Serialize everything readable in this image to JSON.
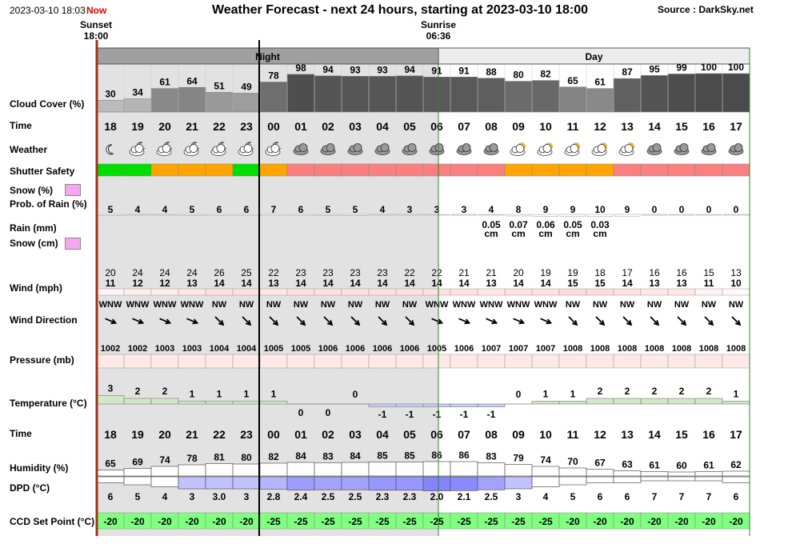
{
  "header": {
    "date": "2023-03-10 18:03",
    "now_label": "Now",
    "title": "Weather Forecast - next 24 hours, starting at 2023-03-10 18:00",
    "source": "Source : DarkSky.net"
  },
  "sun": {
    "sunset_label": "Sunset",
    "sunset_time": "18:00",
    "sunrise_label": "Sunrise",
    "sunrise_time": "06:36"
  },
  "period": {
    "night": "Night",
    "day": "Day"
  },
  "labels": {
    "cloud": "Cloud Cover (%)",
    "time": "Time",
    "weather": "Weather",
    "shutter": "Shutter Safety",
    "snow_pct": "Snow (%)",
    "prob_rain": "Prob. of Rain (%)",
    "rain_mm": "Rain (mm)",
    "snow_cm": "Snow (cm)",
    "wind": "Wind (mph)",
    "wind_dir": "Wind Direction",
    "pressure": "Pressure (mb)",
    "temperature": "Temperature (°C)",
    "humidity": "Humidity (%)",
    "dpd": "DPD (°C)",
    "ccd": "CCD Set Point (°C)"
  },
  "colors": {
    "night_bg": "#e2e2e2",
    "period_bar_night": "#a0a0a0",
    "period_bar_day": "#ececec",
    "shutter_green": "#00dd00",
    "shutter_orange": "#ffa500",
    "shutter_red": "#f88080",
    "snow_swatch": "#f4a6f0",
    "ccd_green": "#80ff80",
    "now_line": "#000000",
    "sunset_line": "#a03018"
  },
  "chart_data": {
    "type": "table",
    "hours": [
      "18",
      "19",
      "20",
      "21",
      "22",
      "23",
      "00",
      "01",
      "02",
      "03",
      "04",
      "05",
      "06",
      "07",
      "08",
      "09",
      "10",
      "11",
      "12",
      "13",
      "14",
      "15",
      "16",
      "17"
    ],
    "cloud_cover": [
      30,
      34,
      61,
      64,
      51,
      49,
      78,
      98,
      94,
      93,
      93,
      94,
      91,
      91,
      88,
      80,
      82,
      65,
      61,
      87,
      95,
      99,
      100,
      100
    ],
    "weather_icons": [
      "clear-night-icon",
      "partly-cloudy-night-icon",
      "partly-cloudy-night-icon",
      "partly-cloudy-night-icon",
      "partly-cloudy-night-icon",
      "partly-cloudy-night-icon",
      "partly-cloudy-night-icon",
      "cloudy-icon",
      "cloudy-icon",
      "cloudy-icon",
      "cloudy-icon",
      "cloudy-icon",
      "cloudy-icon",
      "cloudy-icon",
      "cloudy-icon",
      "partly-cloudy-day-icon",
      "partly-cloudy-day-icon",
      "partly-cloudy-day-icon",
      "partly-cloudy-day-icon",
      "partly-cloudy-day-icon",
      "cloudy-icon",
      "cloudy-icon",
      "cloudy-icon",
      "cloudy-icon"
    ],
    "shutter_safety": [
      "green",
      "green",
      "orange",
      "orange",
      "orange",
      "green",
      "orange",
      "red",
      "red",
      "red",
      "red",
      "red",
      "red",
      "red",
      "red",
      "orange",
      "orange",
      "orange",
      "orange",
      "red",
      "red",
      "red",
      "red",
      "red"
    ],
    "prob_rain": [
      5,
      4,
      4,
      5,
      6,
      6,
      7,
      6,
      5,
      5,
      4,
      3,
      3,
      3,
      4,
      8,
      9,
      9,
      10,
      9,
      0,
      0,
      0,
      0
    ],
    "snow_amount": [
      null,
      null,
      null,
      null,
      null,
      null,
      null,
      null,
      null,
      null,
      null,
      null,
      null,
      null,
      "0.05",
      "0.07",
      "0.06",
      "0.05",
      "0.03",
      null,
      null,
      null,
      null,
      null
    ],
    "snow_unit": "cm",
    "wind_gust": [
      20,
      24,
      24,
      24,
      26,
      25,
      22,
      23,
      23,
      23,
      23,
      22,
      22,
      21,
      21,
      20,
      19,
      19,
      18,
      17,
      16,
      16,
      15,
      13
    ],
    "wind_speed": [
      11,
      12,
      12,
      13,
      14,
      14,
      13,
      14,
      14,
      14,
      14,
      14,
      14,
      14,
      13,
      14,
      14,
      15,
      15,
      14,
      13,
      13,
      11,
      10
    ],
    "wind_direction": [
      "WNW",
      "WNW",
      "WNW",
      "WNW",
      "NW",
      "NW",
      "NW",
      "NW",
      "NW",
      "NW",
      "NW",
      "NW",
      "WNW",
      "WNW",
      "WNW",
      "WNW",
      "WNW",
      "NW",
      "NW",
      "NW",
      "NW",
      "NW",
      "NW",
      "NW"
    ],
    "pressure": [
      1002,
      1002,
      1003,
      1003,
      1004,
      1004,
      1005,
      1005,
      1006,
      1006,
      1006,
      1006,
      1005,
      1006,
      1007,
      1007,
      1007,
      1008,
      1008,
      1008,
      1008,
      1008,
      1008,
      1008
    ],
    "temperature": [
      3,
      2,
      2,
      1,
      1,
      1,
      1,
      0,
      0,
      0,
      -1,
      -1,
      -1,
      -1,
      -1,
      0,
      1,
      1,
      2,
      2,
      2,
      2,
      2,
      1
    ],
    "humidity": [
      65,
      69,
      74,
      78,
      81,
      80,
      82,
      84,
      83,
      84,
      85,
      85,
      86,
      86,
      83,
      79,
      74,
      70,
      67,
      63,
      61,
      60,
      61,
      62
    ],
    "dpd": [
      "6",
      "5",
      "4",
      "3",
      "3.0",
      "3",
      "2.8",
      "2.4",
      "2.5",
      "2.5",
      "2.3",
      "2.3",
      "2.0",
      "2.1",
      "2.5",
      "3",
      "4",
      "5",
      "6",
      "6",
      "7",
      "7",
      "7",
      "6"
    ],
    "ccd_set_point": [
      -20,
      -20,
      -20,
      -20,
      -20,
      -20,
      -25,
      -25,
      -25,
      -25,
      -25,
      -25,
      -25,
      -25,
      -25,
      -25,
      -25,
      -20,
      -20,
      -20,
      -20,
      -20,
      -20,
      -20
    ],
    "ylim_cloud": [
      0,
      100
    ]
  }
}
